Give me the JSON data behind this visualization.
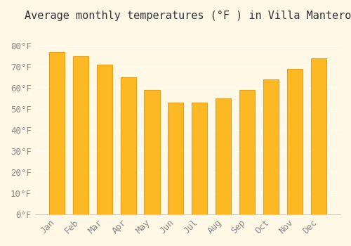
{
  "months": [
    "Jan",
    "Feb",
    "Mar",
    "Apr",
    "May",
    "Jun",
    "Jul",
    "Aug",
    "Sep",
    "Oct",
    "Nov",
    "Dec"
  ],
  "values": [
    77,
    75,
    71,
    65,
    59,
    53,
    53,
    55,
    59,
    64,
    69,
    74
  ],
  "bar_color": "#FDB924",
  "bar_edge_color": "#E8A020",
  "title": "Average monthly temperatures (°F ) in Villa Mantero",
  "ylim": [
    0,
    88
  ],
  "yticks": [
    0,
    10,
    20,
    30,
    40,
    50,
    60,
    70,
    80
  ],
  "ytick_labels": [
    "0°F",
    "10°F",
    "20°F",
    "30°F",
    "40°F",
    "50°F",
    "60°F",
    "70°F",
    "80°F"
  ],
  "background_color": "#FFF8E7",
  "grid_color": "#FFFFFF",
  "title_fontsize": 11,
  "tick_fontsize": 9,
  "title_font": "monospace",
  "tick_font": "monospace"
}
